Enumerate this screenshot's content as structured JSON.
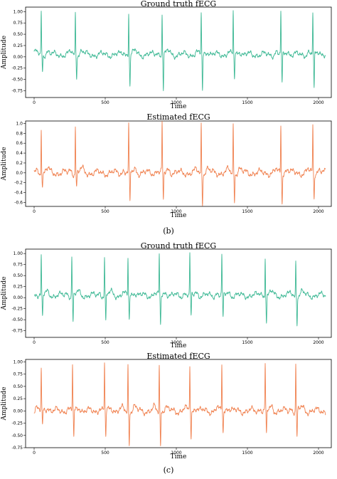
{
  "colors": {
    "ground": "#3cb894",
    "estimated": "#f0814f",
    "frame": "#000000"
  },
  "chart_data": [
    {
      "type": "line",
      "title": "Ground truth fECG",
      "xlabel": "Time",
      "ylabel": "Amplitude",
      "xlim": [
        -60,
        2090
      ],
      "ylim": [
        -0.9,
        1.1
      ],
      "xticks": [
        0,
        500,
        1000,
        1500,
        2000
      ],
      "yticks": [
        -0.75,
        -0.5,
        -0.25,
        0.0,
        0.25,
        0.5,
        0.75,
        1.0
      ],
      "ytick_labels": [
        "-0.75",
        "-0.50",
        "-0.25",
        "0.00",
        "0.25",
        "0.50",
        "0.75",
        "1.00"
      ],
      "color_key": "ground",
      "baseline": 0.05,
      "spikes": [
        {
          "t": 50,
          "peak": 1.0,
          "trough": -0.3
        },
        {
          "t": 290,
          "peak": 1.0,
          "trough": -0.4
        },
        {
          "t": 665,
          "peak": 1.0,
          "trough": -0.65
        },
        {
          "t": 900,
          "peak": 0.98,
          "trough": -0.72
        },
        {
          "t": 1175,
          "peak": 0.98,
          "trough": -0.75
        },
        {
          "t": 1400,
          "peak": 0.98,
          "trough": -0.5
        },
        {
          "t": 1735,
          "peak": 0.98,
          "trough": -0.65
        },
        {
          "t": 1960,
          "peak": 0.98,
          "trough": -0.75
        }
      ]
    },
    {
      "type": "line",
      "title": "Estimated fECG",
      "xlabel": "Time",
      "ylabel": "Amplitude",
      "xlim": [
        -60,
        2090
      ],
      "ylim": [
        -0.68,
        1.05
      ],
      "xticks": [
        0,
        500,
        1000,
        1500,
        2000
      ],
      "yticks": [
        -0.6,
        -0.4,
        -0.2,
        0.0,
        0.2,
        0.4,
        0.6,
        0.8,
        1.0
      ],
      "ytick_labels": [
        "-0.6",
        "-0.4",
        "-0.2",
        "0.0",
        "0.2",
        "0.4",
        "0.6",
        "0.8",
        "1.0"
      ],
      "color_key": "estimated",
      "baseline": 0.0,
      "spikes": [
        {
          "t": 50,
          "peak": 0.95,
          "trough": -0.28
        },
        {
          "t": 290,
          "peak": 0.95,
          "trough": -0.3
        },
        {
          "t": 665,
          "peak": 0.95,
          "trough": -0.62
        },
        {
          "t": 900,
          "peak": 0.98,
          "trough": -0.6
        },
        {
          "t": 1175,
          "peak": 0.98,
          "trough": -0.62
        },
        {
          "t": 1400,
          "peak": 0.98,
          "trough": -0.55
        },
        {
          "t": 1735,
          "peak": 0.98,
          "trough": -0.6
        },
        {
          "t": 1960,
          "peak": 0.98,
          "trough": -0.5
        }
      ]
    },
    {
      "type": "line",
      "title": "Ground truth fECG",
      "xlabel": "Time",
      "ylabel": "Amplitude",
      "xlim": [
        -60,
        2090
      ],
      "ylim": [
        -0.9,
        1.1
      ],
      "xticks": [
        0,
        500,
        1000,
        1500,
        2000
      ],
      "yticks": [
        -0.75,
        -0.5,
        -0.25,
        0.0,
        0.25,
        0.5,
        0.75,
        1.0
      ],
      "ytick_labels": [
        "-0.75",
        "-0.50",
        "-0.25",
        "0.00",
        "0.25",
        "0.50",
        "0.75",
        "1.00"
      ],
      "color_key": "ground",
      "baseline": 0.05,
      "spikes": [
        {
          "t": 50,
          "peak": 0.95,
          "trough": -0.45
        },
        {
          "t": 265,
          "peak": 0.95,
          "trough": -0.55
        },
        {
          "t": 495,
          "peak": 0.95,
          "trough": -0.55
        },
        {
          "t": 660,
          "peak": 0.88,
          "trough": -0.5
        },
        {
          "t": 880,
          "peak": 0.95,
          "trough": -0.65
        },
        {
          "t": 1095,
          "peak": 0.95,
          "trough": -0.45
        },
        {
          "t": 1320,
          "peak": 0.95,
          "trough": -0.5
        },
        {
          "t": 1625,
          "peak": 0.95,
          "trough": -0.55
        },
        {
          "t": 1840,
          "peak": 0.85,
          "trough": -0.55
        }
      ]
    },
    {
      "type": "line",
      "title": "Estimated fECG",
      "xlabel": "Time",
      "ylabel": "Amplitude",
      "xlim": [
        -60,
        2090
      ],
      "ylim": [
        -0.75,
        1.05
      ],
      "xticks": [
        0,
        500,
        1000,
        1500,
        2000
      ],
      "yticks": [
        -0.75,
        -0.5,
        -0.25,
        0.0,
        0.25,
        0.5,
        0.75,
        1.0
      ],
      "ytick_labels": [
        "-0.75",
        "-0.50",
        "-0.25",
        "0.00",
        "0.25",
        "0.50",
        "0.75",
        "1.00"
      ],
      "color_key": "estimated",
      "baseline": 0.0,
      "spikes": [
        {
          "t": 50,
          "peak": 0.85,
          "trough": -0.3
        },
        {
          "t": 270,
          "peak": 0.95,
          "trough": -0.55
        },
        {
          "t": 495,
          "peak": 0.95,
          "trough": -0.55
        },
        {
          "t": 660,
          "peak": 0.95,
          "trough": -0.65
        },
        {
          "t": 880,
          "peak": 0.95,
          "trough": -0.7
        },
        {
          "t": 1095,
          "peak": 0.95,
          "trough": -0.55
        },
        {
          "t": 1320,
          "peak": 0.95,
          "trough": -0.45
        },
        {
          "t": 1625,
          "peak": 0.95,
          "trough": -0.5
        },
        {
          "t": 1840,
          "peak": 0.95,
          "trough": -0.55
        }
      ]
    }
  ],
  "captions": {
    "first": "(b)",
    "second": "(c)"
  }
}
